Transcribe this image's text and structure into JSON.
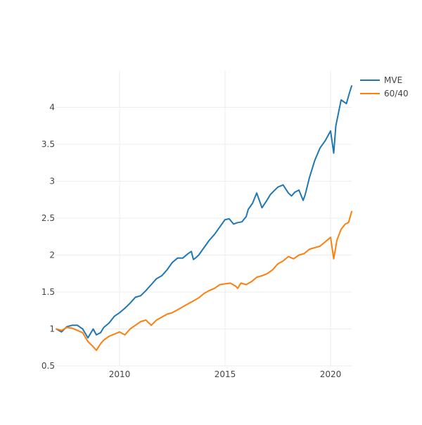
{
  "chart_data": {
    "type": "line",
    "title": "",
    "xlabel": "",
    "ylabel": "",
    "xlim": [
      2007.0,
      2021.0
    ],
    "ylim": [
      0.5,
      4.5
    ],
    "x_ticks": [
      {
        "value": 2010,
        "label": "2010"
      },
      {
        "value": 2015,
        "label": "2015"
      },
      {
        "value": 2020,
        "label": "2020"
      }
    ],
    "y_ticks": [
      {
        "value": 0.5,
        "label": "0.5"
      },
      {
        "value": 1,
        "label": "1"
      },
      {
        "value": 1.5,
        "label": "1.5"
      },
      {
        "value": 2,
        "label": "2"
      },
      {
        "value": 2.5,
        "label": "2.5"
      },
      {
        "value": 3,
        "label": "3"
      },
      {
        "value": 3.5,
        "label": "3.5"
      },
      {
        "value": 4,
        "label": "4"
      }
    ],
    "grid": true,
    "legend_position": "top-right",
    "series": [
      {
        "name": "MVE",
        "color": "#1f77b4",
        "x": [
          2007.0,
          2007.25,
          2007.5,
          2007.75,
          2008.0,
          2008.25,
          2008.5,
          2008.75,
          2008.9,
          2009.1,
          2009.25,
          2009.5,
          2009.75,
          2010.0,
          2010.25,
          2010.5,
          2010.75,
          2011.0,
          2011.25,
          2011.5,
          2011.75,
          2012.0,
          2012.25,
          2012.5,
          2012.75,
          2013.0,
          2013.25,
          2013.4,
          2013.5,
          2013.6,
          2013.75,
          2014.0,
          2014.25,
          2014.5,
          2014.75,
          2015.0,
          2015.2,
          2015.4,
          2015.6,
          2015.8,
          2016.0,
          2016.1,
          2016.3,
          2016.5,
          2016.75,
          2017.0,
          2017.15,
          2017.25,
          2017.5,
          2017.75,
          2018.0,
          2018.15,
          2018.3,
          2018.5,
          2018.7,
          2018.8,
          2019.0,
          2019.25,
          2019.5,
          2019.75,
          2020.0,
          2020.15,
          2020.25,
          2020.5,
          2020.75,
          2020.9,
          2021.0
        ],
        "values": [
          1.0,
          0.96,
          1.03,
          1.05,
          1.05,
          1.0,
          0.88,
          1.0,
          0.92,
          0.95,
          1.02,
          1.08,
          1.17,
          1.22,
          1.28,
          1.35,
          1.43,
          1.45,
          1.52,
          1.6,
          1.68,
          1.72,
          1.8,
          1.9,
          1.96,
          1.96,
          2.02,
          2.05,
          1.94,
          1.96,
          2.0,
          2.1,
          2.2,
          2.28,
          2.38,
          2.48,
          2.49,
          2.42,
          2.44,
          2.45,
          2.52,
          2.62,
          2.7,
          2.84,
          2.64,
          2.75,
          2.82,
          2.85,
          2.92,
          2.95,
          2.84,
          2.8,
          2.85,
          2.88,
          2.74,
          2.82,
          3.05,
          3.28,
          3.45,
          3.55,
          3.68,
          3.38,
          3.75,
          4.1,
          4.05,
          4.2,
          4.29
        ]
      },
      {
        "name": "60/40",
        "color": "#ff7f0e",
        "x": [
          2007.0,
          2007.25,
          2007.5,
          2007.75,
          2008.0,
          2008.25,
          2008.5,
          2008.75,
          2008.9,
          2009.1,
          2009.25,
          2009.5,
          2009.75,
          2010.0,
          2010.25,
          2010.5,
          2010.75,
          2011.0,
          2011.25,
          2011.5,
          2011.75,
          2012.0,
          2012.25,
          2012.5,
          2012.75,
          2013.0,
          2013.25,
          2013.5,
          2013.75,
          2014.0,
          2014.25,
          2014.5,
          2014.75,
          2015.0,
          2015.25,
          2015.5,
          2015.6,
          2015.75,
          2016.0,
          2016.25,
          2016.5,
          2016.75,
          2017.0,
          2017.25,
          2017.5,
          2017.75,
          2018.0,
          2018.25,
          2018.5,
          2018.75,
          2019.0,
          2019.25,
          2019.5,
          2019.75,
          2020.0,
          2020.15,
          2020.3,
          2020.5,
          2020.7,
          2020.85,
          2021.0
        ],
        "values": [
          1.0,
          0.98,
          1.02,
          1.01,
          0.98,
          0.95,
          0.83,
          0.76,
          0.71,
          0.8,
          0.85,
          0.9,
          0.93,
          0.96,
          0.92,
          1.0,
          1.05,
          1.1,
          1.12,
          1.05,
          1.12,
          1.16,
          1.2,
          1.22,
          1.26,
          1.3,
          1.34,
          1.38,
          1.42,
          1.48,
          1.52,
          1.55,
          1.6,
          1.61,
          1.62,
          1.58,
          1.55,
          1.62,
          1.6,
          1.64,
          1.7,
          1.72,
          1.75,
          1.8,
          1.88,
          1.92,
          1.98,
          1.95,
          2.0,
          2.02,
          2.08,
          2.1,
          2.12,
          2.18,
          2.24,
          1.95,
          2.2,
          2.35,
          2.42,
          2.44,
          2.59
        ]
      }
    ]
  }
}
